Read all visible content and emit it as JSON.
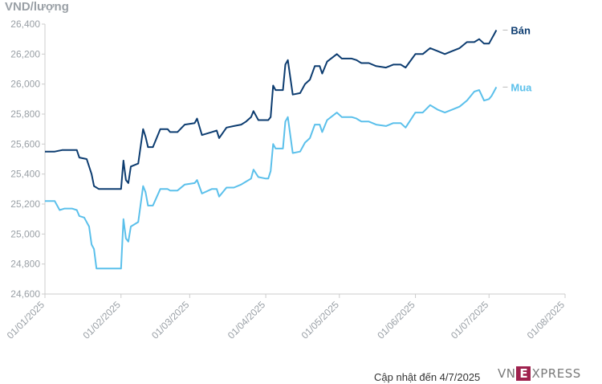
{
  "chart_data": {
    "type": "line",
    "ylabel": "VND/lượng",
    "ylim": [
      24600,
      26400
    ],
    "yticks": [
      24600,
      24800,
      25000,
      25200,
      25400,
      25600,
      25800,
      26000,
      26200,
      26400
    ],
    "ytick_labels": [
      "24,600",
      "24,800",
      "25,000",
      "25,200",
      "25,400",
      "25,600",
      "25,800",
      "26,000",
      "26,200",
      "26,400"
    ],
    "xlim": [
      "2025-01-01",
      "2025-08-01"
    ],
    "xtick_labels": [
      "01/01/2025",
      "01/02/2025",
      "01/03/2025",
      "01/04/2025",
      "01/05/2025",
      "01/06/2025",
      "01/07/2025",
      "01/08/2025"
    ],
    "xticks": [
      "2025-01-01",
      "2025-02-01",
      "2025-03-01",
      "2025-04-01",
      "2025-05-01",
      "2025-06-01",
      "2025-07-01",
      "2025-08-01"
    ],
    "grid": false,
    "series": [
      {
        "name": "Bán",
        "color": "#0c3c70",
        "points": [
          [
            "2025-01-01",
            25550
          ],
          [
            "2025-01-03",
            25550
          ],
          [
            "2025-01-05",
            25550
          ],
          [
            "2025-01-08",
            25560
          ],
          [
            "2025-01-12",
            25560
          ],
          [
            "2025-01-14",
            25560
          ],
          [
            "2025-01-15",
            25510
          ],
          [
            "2025-01-18",
            25500
          ],
          [
            "2025-01-20",
            25400
          ],
          [
            "2025-01-21",
            25320
          ],
          [
            "2025-01-23",
            25300
          ],
          [
            "2025-01-26",
            25300
          ],
          [
            "2025-02-01",
            25300
          ],
          [
            "2025-02-02",
            25490
          ],
          [
            "2025-02-03",
            25360
          ],
          [
            "2025-02-04",
            25340
          ],
          [
            "2025-02-05",
            25450
          ],
          [
            "2025-02-08",
            25470
          ],
          [
            "2025-02-10",
            25700
          ],
          [
            "2025-02-11",
            25650
          ],
          [
            "2025-02-12",
            25580
          ],
          [
            "2025-02-14",
            25580
          ],
          [
            "2025-02-17",
            25700
          ],
          [
            "2025-02-20",
            25700
          ],
          [
            "2025-02-21",
            25680
          ],
          [
            "2025-02-24",
            25680
          ],
          [
            "2025-02-27",
            25730
          ],
          [
            "2025-03-03",
            25740
          ],
          [
            "2025-03-04",
            25770
          ],
          [
            "2025-03-06",
            25660
          ],
          [
            "2025-03-10",
            25680
          ],
          [
            "2025-03-12",
            25690
          ],
          [
            "2025-03-13",
            25640
          ],
          [
            "2025-03-16",
            25710
          ],
          [
            "2025-03-19",
            25720
          ],
          [
            "2025-03-22",
            25730
          ],
          [
            "2025-03-24",
            25750
          ],
          [
            "2025-03-26",
            25780
          ],
          [
            "2025-03-27",
            25820
          ],
          [
            "2025-03-29",
            25760
          ],
          [
            "2025-04-01",
            25760
          ],
          [
            "2025-04-02",
            25760
          ],
          [
            "2025-04-03",
            25780
          ],
          [
            "2025-04-04",
            25990
          ],
          [
            "2025-04-05",
            25960
          ],
          [
            "2025-04-08",
            25960
          ],
          [
            "2025-04-09",
            26130
          ],
          [
            "2025-04-10",
            26160
          ],
          [
            "2025-04-12",
            25930
          ],
          [
            "2025-04-15",
            25940
          ],
          [
            "2025-04-17",
            26000
          ],
          [
            "2025-04-19",
            26030
          ],
          [
            "2025-04-21",
            26120
          ],
          [
            "2025-04-23",
            26120
          ],
          [
            "2025-04-24",
            26070
          ],
          [
            "2025-04-26",
            26150
          ],
          [
            "2025-04-30",
            26200
          ],
          [
            "2025-05-02",
            26170
          ],
          [
            "2025-05-06",
            26170
          ],
          [
            "2025-05-08",
            26160
          ],
          [
            "2025-05-09",
            26150
          ],
          [
            "2025-05-10",
            26140
          ],
          [
            "2025-05-13",
            26140
          ],
          [
            "2025-05-16",
            26120
          ],
          [
            "2025-05-20",
            26110
          ],
          [
            "2025-05-23",
            26130
          ],
          [
            "2025-05-26",
            26130
          ],
          [
            "2025-05-28",
            26110
          ],
          [
            "2025-06-01",
            26200
          ],
          [
            "2025-06-04",
            26200
          ],
          [
            "2025-06-07",
            26240
          ],
          [
            "2025-06-10",
            26220
          ],
          [
            "2025-06-13",
            26200
          ],
          [
            "2025-06-16",
            26220
          ],
          [
            "2025-06-19",
            26240
          ],
          [
            "2025-06-22",
            26280
          ],
          [
            "2025-06-25",
            26280
          ],
          [
            "2025-06-27",
            26300
          ],
          [
            "2025-06-29",
            26270
          ],
          [
            "2025-07-01",
            26270
          ],
          [
            "2025-07-02",
            26300
          ],
          [
            "2025-07-03",
            26330
          ],
          [
            "2025-07-04",
            26360
          ]
        ]
      },
      {
        "name": "Mua",
        "color": "#5bc0eb",
        "points": [
          [
            "2025-01-01",
            25220
          ],
          [
            "2025-01-03",
            25220
          ],
          [
            "2025-01-05",
            25220
          ],
          [
            "2025-01-07",
            25160
          ],
          [
            "2025-01-09",
            25170
          ],
          [
            "2025-01-12",
            25170
          ],
          [
            "2025-01-14",
            25160
          ],
          [
            "2025-01-15",
            25120
          ],
          [
            "2025-01-17",
            25110
          ],
          [
            "2025-01-19",
            25050
          ],
          [
            "2025-01-20",
            24930
          ],
          [
            "2025-01-21",
            24900
          ],
          [
            "2025-01-22",
            24770
          ],
          [
            "2025-01-26",
            24770
          ],
          [
            "2025-02-01",
            24770
          ],
          [
            "2025-02-02",
            25100
          ],
          [
            "2025-02-03",
            24970
          ],
          [
            "2025-02-04",
            24950
          ],
          [
            "2025-02-05",
            25050
          ],
          [
            "2025-02-08",
            25080
          ],
          [
            "2025-02-10",
            25320
          ],
          [
            "2025-02-11",
            25280
          ],
          [
            "2025-02-12",
            25190
          ],
          [
            "2025-02-14",
            25190
          ],
          [
            "2025-02-17",
            25300
          ],
          [
            "2025-02-20",
            25300
          ],
          [
            "2025-02-21",
            25290
          ],
          [
            "2025-02-24",
            25290
          ],
          [
            "2025-02-27",
            25330
          ],
          [
            "2025-03-03",
            25340
          ],
          [
            "2025-03-04",
            25360
          ],
          [
            "2025-03-06",
            25270
          ],
          [
            "2025-03-10",
            25300
          ],
          [
            "2025-03-12",
            25300
          ],
          [
            "2025-03-13",
            25250
          ],
          [
            "2025-03-16",
            25310
          ],
          [
            "2025-03-19",
            25310
          ],
          [
            "2025-03-22",
            25330
          ],
          [
            "2025-03-24",
            25350
          ],
          [
            "2025-03-26",
            25370
          ],
          [
            "2025-03-27",
            25430
          ],
          [
            "2025-03-29",
            25380
          ],
          [
            "2025-04-01",
            25370
          ],
          [
            "2025-04-02",
            25370
          ],
          [
            "2025-04-03",
            25420
          ],
          [
            "2025-04-04",
            25600
          ],
          [
            "2025-04-05",
            25570
          ],
          [
            "2025-04-08",
            25570
          ],
          [
            "2025-04-09",
            25750
          ],
          [
            "2025-04-10",
            25780
          ],
          [
            "2025-04-12",
            25540
          ],
          [
            "2025-04-15",
            25550
          ],
          [
            "2025-04-17",
            25610
          ],
          [
            "2025-04-19",
            25640
          ],
          [
            "2025-04-21",
            25730
          ],
          [
            "2025-04-23",
            25730
          ],
          [
            "2025-04-24",
            25680
          ],
          [
            "2025-04-26",
            25760
          ],
          [
            "2025-04-30",
            25810
          ],
          [
            "2025-05-02",
            25780
          ],
          [
            "2025-05-06",
            25780
          ],
          [
            "2025-05-08",
            25770
          ],
          [
            "2025-05-09",
            25760
          ],
          [
            "2025-05-10",
            25750
          ],
          [
            "2025-05-13",
            25750
          ],
          [
            "2025-05-16",
            25730
          ],
          [
            "2025-05-20",
            25720
          ],
          [
            "2025-05-23",
            25740
          ],
          [
            "2025-05-26",
            25740
          ],
          [
            "2025-05-28",
            25710
          ],
          [
            "2025-06-01",
            25810
          ],
          [
            "2025-06-04",
            25810
          ],
          [
            "2025-06-07",
            25860
          ],
          [
            "2025-06-10",
            25830
          ],
          [
            "2025-06-13",
            25810
          ],
          [
            "2025-06-16",
            25830
          ],
          [
            "2025-06-19",
            25850
          ],
          [
            "2025-06-22",
            25890
          ],
          [
            "2025-06-25",
            25950
          ],
          [
            "2025-06-27",
            25960
          ],
          [
            "2025-06-29",
            25890
          ],
          [
            "2025-07-01",
            25900
          ],
          [
            "2025-07-02",
            25920
          ],
          [
            "2025-07-03",
            25950
          ],
          [
            "2025-07-04",
            25980
          ]
        ]
      }
    ]
  },
  "footer": {
    "update_note": "Cập nhật đến 4/7/2025"
  },
  "logo": {
    "part1": "VN",
    "part2": "E",
    "part3": "XPRESS",
    "accent_color": "#9f224e"
  }
}
